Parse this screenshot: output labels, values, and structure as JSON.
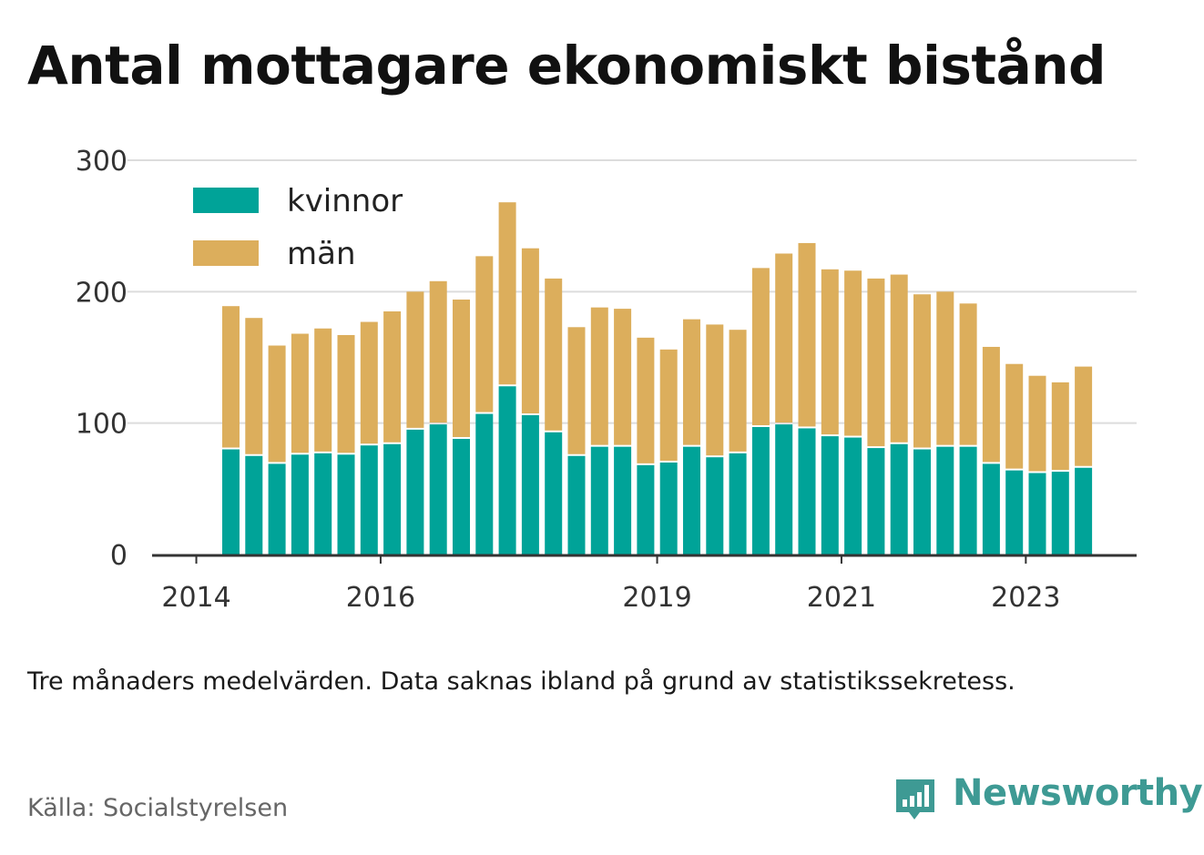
{
  "title": "Antal mottagare ekonomiskt bistånd",
  "note": "Tre månaders medelvärden. Data saknas ibland på grund av statistikssekretess.",
  "source": "Källa: Socialstyrelsen",
  "brand": {
    "name": "Newsworthy",
    "icon": "newsworthy-logo-icon",
    "color": "#3e9a94"
  },
  "chart_data": {
    "type": "bar",
    "stacked": true,
    "ylim": [
      0,
      300
    ],
    "yticks": [
      0,
      100,
      200,
      300
    ],
    "grid": true,
    "legend_position": "top-left",
    "xtick_labels": [
      "2014",
      "2016",
      "2019",
      "2021",
      "2023"
    ],
    "periods": [
      "2014-Q2",
      "2014-Q3",
      "2014-Q4",
      "2015-Q1",
      "2015-Q2",
      "2015-Q3",
      "2015-Q4",
      "2016-Q1",
      "2016-Q2",
      "2016-Q3",
      "2016-Q4",
      "2017-Q1",
      "2017-Q2",
      "2017-Q3",
      "2017-Q4",
      "2018-Q1",
      "2018-Q2",
      "2018-Q3",
      "2018-Q4",
      "2019-Q1",
      "2019-Q2",
      "2019-Q3",
      "2019-Q4",
      "2020-Q1",
      "2020-Q2",
      "2020-Q3",
      "2020-Q4",
      "2021-Q1",
      "2021-Q2",
      "2021-Q3",
      "2021-Q4",
      "2022-Q1",
      "2022-Q2",
      "2022-Q3",
      "2022-Q4",
      "2023-Q1",
      "2023-Q2",
      "2023-Q3"
    ],
    "series": [
      {
        "name": "kvinnor",
        "color": "#00a398",
        "values": [
          80,
          75,
          69,
          76,
          77,
          76,
          83,
          84,
          95,
          99,
          88,
          107,
          128,
          106,
          93,
          75,
          82,
          82,
          68,
          70,
          82,
          74,
          77,
          97,
          99,
          96,
          90,
          89,
          81,
          84,
          80,
          82,
          82,
          69,
          64,
          62,
          63,
          66
        ]
      },
      {
        "name": "män",
        "color": "#dcae5c",
        "values": [
          109,
          105,
          90,
          92,
          95,
          91,
          94,
          101,
          105,
          109,
          106,
          120,
          140,
          127,
          117,
          98,
          106,
          105,
          97,
          86,
          97,
          101,
          94,
          121,
          130,
          141,
          127,
          127,
          129,
          129,
          118,
          118,
          109,
          89,
          81,
          74,
          68,
          77
        ]
      }
    ]
  }
}
